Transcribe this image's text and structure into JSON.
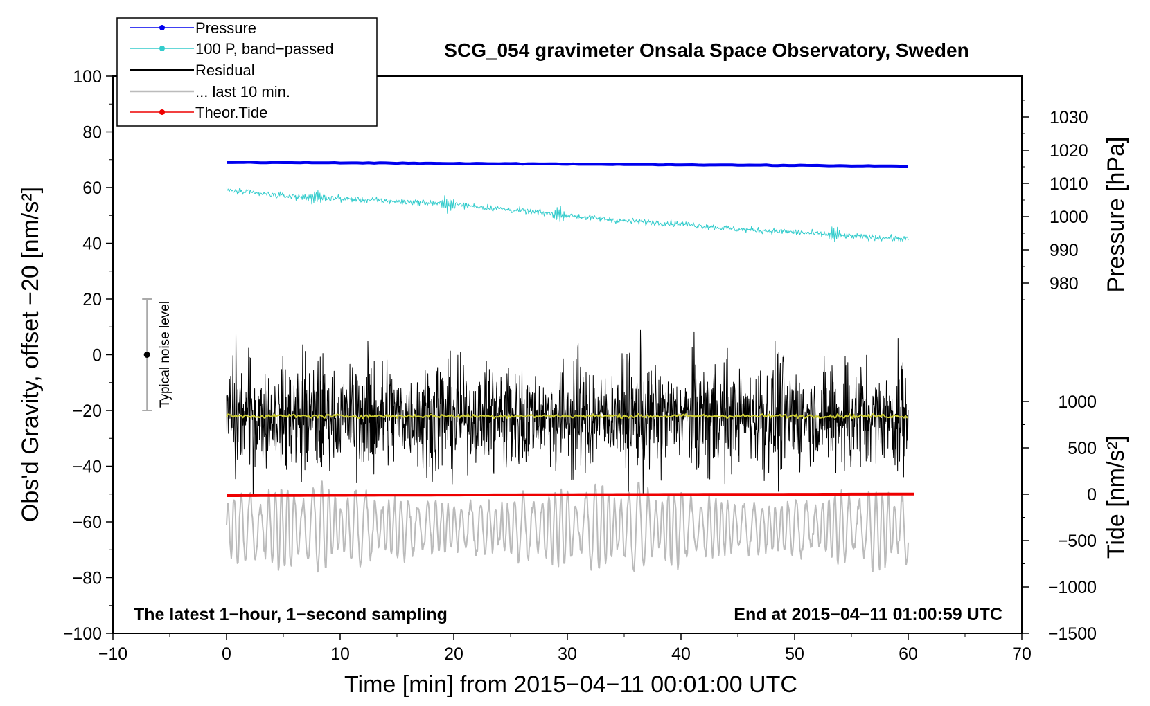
{
  "chart_data": {
    "type": "line",
    "title": "SCG_054 gravimeter Onsala Space Observatory, Sweden",
    "xlabel": "Time [min] from 2015−04−11 00:01:00 UTC",
    "ylabel_left": "Obs'd Gravity, offset −20 [nm/s²]",
    "ylabel_pressure": "Pressure [hPa]",
    "ylabel_tide": "Tide [nm/s²]",
    "xlim": [
      -10,
      70
    ],
    "ylim_left": [
      -100,
      100
    ],
    "ylim_pressure": [
      970,
      1035
    ],
    "ylim_tide": [
      -1500,
      1000
    ],
    "x_ticks": [
      -10,
      0,
      10,
      20,
      30,
      40,
      50,
      60,
      70
    ],
    "x_tick_labels": [
      "−10",
      "0",
      "10",
      "20",
      "30",
      "40",
      "50",
      "60",
      "70"
    ],
    "left_ticks": [
      100,
      80,
      60,
      40,
      20,
      0,
      -20,
      -40,
      -60,
      -80,
      -100
    ],
    "left_tick_labels": [
      "100",
      "80",
      "60",
      "40",
      "20",
      "0",
      "−20",
      "−40",
      "−60",
      "−80",
      "−100"
    ],
    "pressure_ticks": [
      1030,
      1020,
      1010,
      1000,
      990,
      980
    ],
    "pressure_tick_labels": [
      "1030",
      "1020",
      "1010",
      "1000",
      "990",
      "980"
    ],
    "tide_ticks": [
      1000,
      500,
      0,
      -500,
      -1000,
      -1500
    ],
    "tide_tick_labels": [
      "1000",
      "500",
      "0",
      "−500",
      "−1000",
      "−1500"
    ],
    "annotations": {
      "bottom_left": "The latest 1−hour, 1−second sampling",
      "bottom_right": "End at 2015−04−11 01:00:59 UTC",
      "noise": "Typical noise level"
    },
    "noise_bar": {
      "x": -7,
      "center": 0,
      "low": -20,
      "high": 20
    },
    "legend": [
      {
        "label": "Pressure",
        "color": "#0000ee",
        "marker": true
      },
      {
        "label": "100 P, band−passed",
        "color": "#33cccc",
        "marker": true
      },
      {
        "label": "Residual",
        "color": "#000000",
        "marker": false
      },
      {
        "label": "... last 10 min.",
        "color": "#bbbbbb",
        "marker": false
      },
      {
        "label": "Theor.Tide",
        "color": "#ee0000",
        "marker": true
      }
    ],
    "series": [
      {
        "name": "Pressure",
        "axis": "pressure",
        "color": "#0000ee",
        "x": [
          0,
          10,
          20,
          30,
          40,
          50,
          60
        ],
        "values": [
          1016.3,
          1016.2,
          1016.0,
          1015.8,
          1015.6,
          1015.4,
          1015.2
        ]
      },
      {
        "name": "100 P, band−passed",
        "axis": "left",
        "color": "#33cccc",
        "x": [
          0,
          5,
          10,
          15,
          20,
          25,
          30,
          35,
          40,
          45,
          50,
          55,
          60
        ],
        "values": [
          59,
          57,
          56,
          55,
          54,
          52,
          50,
          48,
          47,
          45,
          44,
          42.5,
          41.5
        ]
      },
      {
        "name": "Residual",
        "axis": "left",
        "color": "#000000",
        "x": [
          0,
          60
        ],
        "values": [
          -22,
          -22
        ]
      },
      {
        "name": "Residual running mean",
        "axis": "left",
        "color": "#cccc33",
        "x": [
          0,
          60
        ],
        "values": [
          -22,
          -22
        ]
      },
      {
        "name": "... last 10 min.",
        "axis": "left",
        "color": "#bbbbbb",
        "x": [
          0,
          60
        ],
        "values": [
          -62,
          -62
        ]
      },
      {
        "name": "Theor.Tide",
        "axis": "tide",
        "color": "#ee0000",
        "x": [
          0,
          10,
          20,
          30,
          40,
          50,
          60.5
        ],
        "values": [
          -15,
          -11,
          -8,
          -5,
          -3,
          -1,
          2
        ]
      }
    ]
  }
}
